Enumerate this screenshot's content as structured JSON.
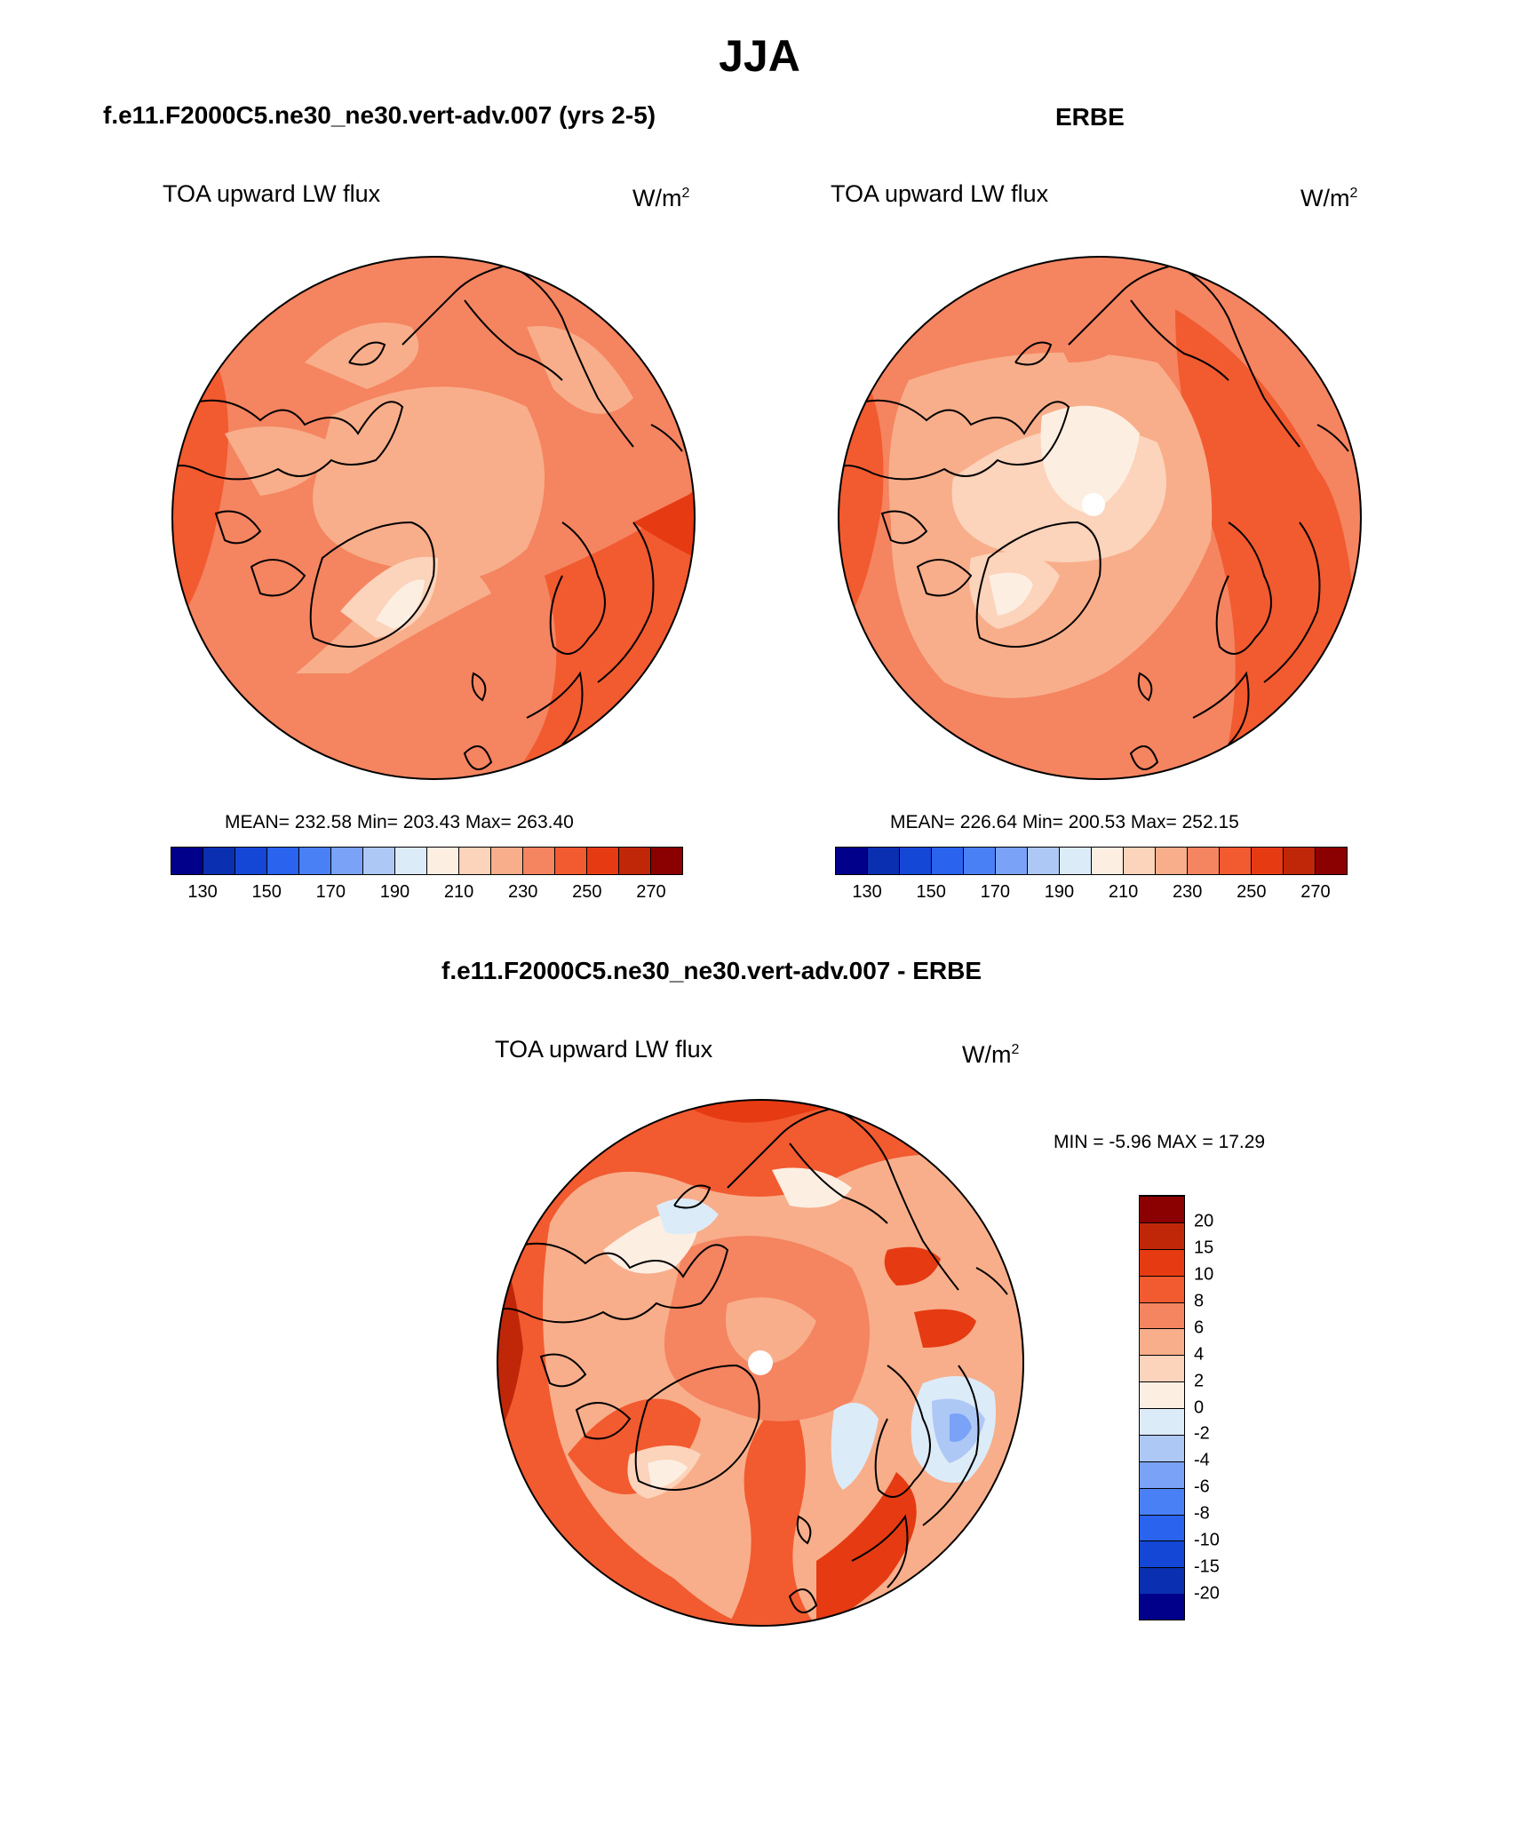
{
  "title": "JJA",
  "panels": {
    "model": {
      "title": "f.e11.F2000C5.ne30_ne30.vert-adv.007 (yrs 2-5)",
      "variable": "TOA upward LW flux",
      "units_base": "W/m",
      "units_exp": "2",
      "stats": "MEAN= 232.58  Min= 203.43  Max= 263.40"
    },
    "obs": {
      "title": "ERBE",
      "variable": "TOA upward LW flux",
      "units_base": "W/m",
      "units_exp": "2",
      "stats": "MEAN= 226.64  Min= 200.53  Max= 252.15"
    },
    "diff": {
      "title": "f.e11.F2000C5.ne30_ne30.vert-adv.007 - ERBE",
      "variable": "TOA upward LW flux",
      "units_base": "W/m",
      "units_exp": "2",
      "stats": "MIN =  -5.96 MAX =  17.29"
    }
  },
  "colorbars": {
    "absolute": {
      "colors": [
        "#00008b",
        "#0a2fb0",
        "#1447d6",
        "#2a63ee",
        "#4a80f5",
        "#7aa3f7",
        "#aec8f5",
        "#dcebf8",
        "#fdeee2",
        "#fcd3bb",
        "#f8ae8a",
        "#f58460",
        "#f25a30",
        "#e63a13",
        "#c02709",
        "#8b0000"
      ],
      "labels": [
        "130",
        "150",
        "170",
        "190",
        "210",
        "230",
        "250",
        "270"
      ]
    },
    "difference": {
      "colors": [
        "#00008b",
        "#0a2fb0",
        "#1447d6",
        "#2a63ee",
        "#4a80f5",
        "#7aa3f7",
        "#aec8f5",
        "#dcebf8",
        "#fdeee2",
        "#fcd3bb",
        "#f8ae8a",
        "#f58460",
        "#f25a30",
        "#e63a13",
        "#c02709",
        "#8b0000"
      ],
      "labels": [
        "-20",
        "-15",
        "-10",
        "-8",
        "-6",
        "-4",
        "-2",
        "0",
        "2",
        "4",
        "6",
        "8",
        "10",
        "15",
        "20"
      ]
    }
  }
}
